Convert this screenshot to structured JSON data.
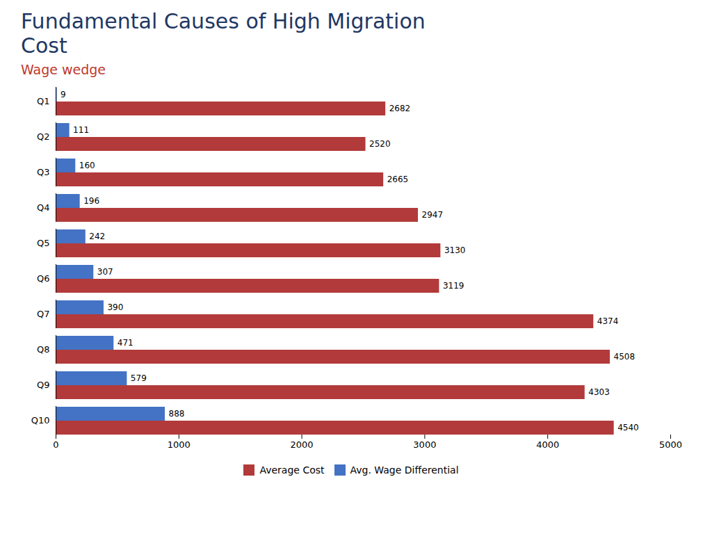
{
  "chart_data": {
    "type": "bar",
    "orientation": "horizontal",
    "title": "Fundamental Causes of High Migration\nCost",
    "subtitle": "Wage wedge",
    "categories": [
      "Q1",
      "Q2",
      "Q3",
      "Q4",
      "Q5",
      "Q6",
      "Q7",
      "Q8",
      "Q9",
      "Q10"
    ],
    "series": [
      {
        "name": "Average Cost",
        "color": "#B23A3A",
        "values": [
          2682,
          2520,
          2665,
          2947,
          3130,
          3119,
          4374,
          4508,
          4303,
          4540
        ]
      },
      {
        "name": "Avg. Wage Differential",
        "color": "#4472C4",
        "values": [
          9,
          111,
          160,
          196,
          242,
          307,
          390,
          471,
          579,
          888
        ]
      }
    ],
    "xlim": [
      0,
      5000
    ],
    "xticks": [
      0,
      1000,
      2000,
      3000,
      4000,
      5000
    ],
    "data_labels": true,
    "grid": false,
    "legend": "bottom"
  }
}
